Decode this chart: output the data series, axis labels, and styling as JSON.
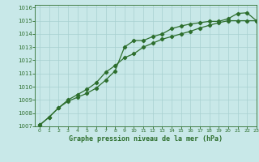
{
  "title": "Graphe pression niveau de la mer (hPa)",
  "bg_color": "#c8e8e8",
  "line_color": "#2d6e2d",
  "grid_color": "#a8d0d0",
  "xlim": [
    -0.5,
    23
  ],
  "ylim": [
    1007,
    1016.2
  ],
  "yticks": [
    1007,
    1008,
    1009,
    1010,
    1011,
    1012,
    1013,
    1014,
    1015,
    1016
  ],
  "xticks": [
    0,
    1,
    2,
    3,
    4,
    5,
    6,
    7,
    8,
    9,
    10,
    11,
    12,
    13,
    14,
    15,
    16,
    17,
    18,
    19,
    20,
    21,
    22,
    23
  ],
  "series1_x": [
    0,
    1,
    2,
    3,
    4,
    5,
    6,
    7,
    8,
    9,
    10,
    11,
    12,
    13,
    14,
    15,
    16,
    17,
    18,
    19,
    20,
    21,
    22,
    23
  ],
  "series1_y": [
    1007.1,
    1007.7,
    1008.4,
    1008.9,
    1009.2,
    1009.5,
    1009.9,
    1010.5,
    1011.2,
    1013.0,
    1013.5,
    1013.5,
    1013.8,
    1014.0,
    1014.4,
    1014.6,
    1014.75,
    1014.85,
    1014.95,
    1014.95,
    1015.15,
    1015.55,
    1015.6,
    1015.0
  ],
  "series2_x": [
    0,
    1,
    2,
    3,
    4,
    5,
    6,
    7,
    8,
    9,
    10,
    11,
    12,
    13,
    14,
    15,
    16,
    17,
    18,
    19,
    20,
    21,
    22,
    23
  ],
  "series2_y": [
    1007.1,
    1007.7,
    1008.4,
    1009.0,
    1009.4,
    1009.8,
    1010.3,
    1011.1,
    1011.6,
    1012.2,
    1012.5,
    1013.0,
    1013.3,
    1013.6,
    1013.8,
    1014.0,
    1014.2,
    1014.45,
    1014.65,
    1014.85,
    1015.0,
    1015.0,
    1015.0,
    1015.0
  ]
}
